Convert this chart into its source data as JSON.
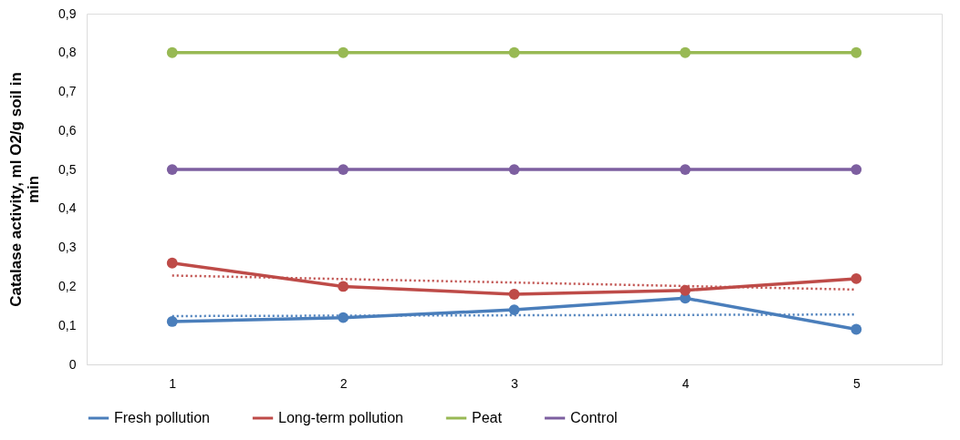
{
  "chart_data": {
    "type": "line",
    "ylabel": "Catalase activity, ml O2/g soil in min",
    "categories": [
      "1",
      "2",
      "3",
      "4",
      "5"
    ],
    "ylim": [
      0,
      0.9
    ],
    "yticks": [
      {
        "value": 0,
        "label": "0"
      },
      {
        "value": 0.1,
        "label": "0,1"
      },
      {
        "value": 0.2,
        "label": "0,2"
      },
      {
        "value": 0.3,
        "label": "0,3"
      },
      {
        "value": 0.4,
        "label": "0,4"
      },
      {
        "value": 0.5,
        "label": "0,5"
      },
      {
        "value": 0.6,
        "label": "0,6"
      },
      {
        "value": 0.7,
        "label": "0,7"
      },
      {
        "value": 0.8,
        "label": "0,8"
      },
      {
        "value": 0.9,
        "label": "0,9"
      }
    ],
    "grid": false,
    "legend": "bottom",
    "marker": "circle",
    "line_style": "solid",
    "series": [
      {
        "name": "Fresh pollution",
        "color": "#4a7ebb",
        "values": [
          0.11,
          0.12,
          0.14,
          0.17,
          0.09
        ]
      },
      {
        "name": "Long-term pollution",
        "color": "#be4b48",
        "values": [
          0.26,
          0.2,
          0.18,
          0.19,
          0.22
        ]
      },
      {
        "name": "Peat",
        "color": "#98b954",
        "values": [
          0.8,
          0.8,
          0.8,
          0.8,
          0.8
        ]
      },
      {
        "name": "Control",
        "color": "#7d5fa0",
        "values": [
          0.5,
          0.5,
          0.5,
          0.5,
          0.5
        ]
      },
      {
        "type": "line",
        "color": "#4a7ebb",
        "line_style": "dotted",
        "marker": "none",
        "values": [
          0.124,
          0.125,
          0.126,
          0.127,
          0.128
        ]
      },
      {
        "type": "line",
        "color": "#be4b48",
        "line_style": "dotted",
        "marker": "none",
        "values": [
          0.228,
          0.219,
          0.21,
          0.201,
          0.192
        ]
      }
    ]
  }
}
